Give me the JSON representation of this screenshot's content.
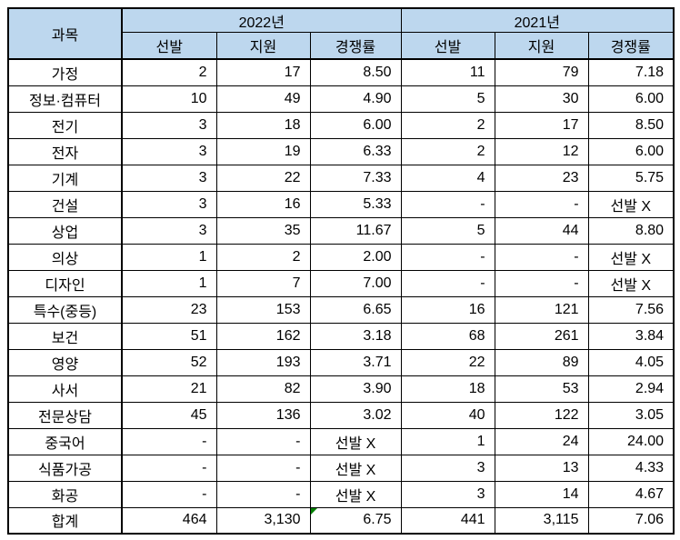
{
  "table": {
    "header": {
      "subject_label": "과목",
      "group_2022": "2022년",
      "group_2021": "2021년",
      "sub_columns": [
        "선발",
        "지원",
        "경쟁률",
        "선발",
        "지원",
        "경쟁률"
      ]
    },
    "rows": [
      {
        "subject": "가정",
        "values": [
          "2",
          "17",
          "8.50",
          "11",
          "79",
          "7.18"
        ]
      },
      {
        "subject": "정보·컴퓨터",
        "values": [
          "10",
          "49",
          "4.90",
          "5",
          "30",
          "6.00"
        ]
      },
      {
        "subject": "전기",
        "values": [
          "3",
          "18",
          "6.00",
          "2",
          "17",
          "8.50"
        ]
      },
      {
        "subject": "전자",
        "values": [
          "3",
          "19",
          "6.33",
          "2",
          "12",
          "6.00"
        ]
      },
      {
        "subject": "기계",
        "values": [
          "3",
          "22",
          "7.33",
          "4",
          "23",
          "5.75"
        ]
      },
      {
        "subject": "건설",
        "values": [
          "3",
          "16",
          "5.33",
          "-",
          "-",
          "선발 X"
        ]
      },
      {
        "subject": "상업",
        "values": [
          "3",
          "35",
          "11.67",
          "5",
          "44",
          "8.80"
        ]
      },
      {
        "subject": "의상",
        "values": [
          "1",
          "2",
          "2.00",
          "-",
          "-",
          "선발 X"
        ]
      },
      {
        "subject": "디자인",
        "values": [
          "1",
          "7",
          "7.00",
          "-",
          "-",
          "선발 X"
        ]
      },
      {
        "subject": "특수(중등)",
        "values": [
          "23",
          "153",
          "6.65",
          "16",
          "121",
          "7.56"
        ]
      },
      {
        "subject": "보건",
        "values": [
          "51",
          "162",
          "3.18",
          "68",
          "261",
          "3.84"
        ]
      },
      {
        "subject": "영양",
        "values": [
          "52",
          "193",
          "3.71",
          "22",
          "89",
          "4.05"
        ]
      },
      {
        "subject": "사서",
        "values": [
          "21",
          "82",
          "3.90",
          "18",
          "53",
          "2.94"
        ]
      },
      {
        "subject": "전문상담",
        "values": [
          "45",
          "136",
          "3.02",
          "40",
          "122",
          "3.05"
        ]
      },
      {
        "subject": "중국어",
        "values": [
          "-",
          "-",
          "선발 X",
          "1",
          "24",
          "24.00"
        ]
      },
      {
        "subject": "식품가공",
        "values": [
          "-",
          "-",
          "선발 X",
          "3",
          "13",
          "4.33"
        ]
      },
      {
        "subject": "화공",
        "values": [
          "-",
          "-",
          "선발 X",
          "3",
          "14",
          "4.67"
        ]
      },
      {
        "subject": "합계",
        "values": [
          "464",
          "3,130",
          "6.75",
          "441",
          "3,115",
          "7.06"
        ]
      }
    ],
    "no_selection_text": "선발 X",
    "green_marker": {
      "row_index": 17,
      "value_index": 2
    },
    "colors": {
      "header_bg": "#BDD7EE",
      "border": "#000000",
      "marker_green": "#008000"
    }
  }
}
